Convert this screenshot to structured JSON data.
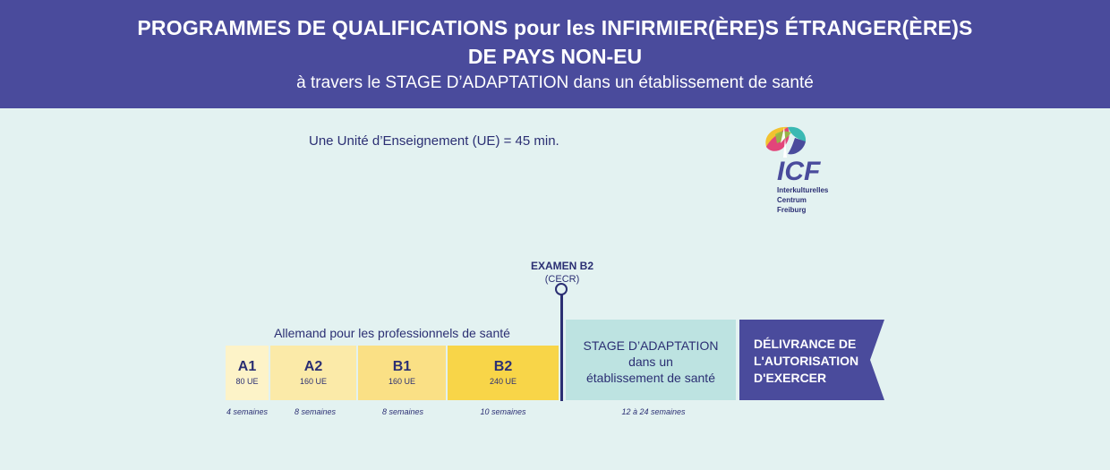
{
  "header": {
    "title_line1": "PROGRAMMES DE QUALIFICATIONS pour les INFIRMIER(ÈRE)S ÉTRANGER(ÈRE)S",
    "title_line2": "DE PAYS NON-EU",
    "subtitle": "à travers le STAGE D’ADAPTATION dans un établissement de santé"
  },
  "unit_note": "Une Unité d’Enseignement (UE) = 45 min.",
  "logo": {
    "acronym": "ICF",
    "name_lines": [
      "Interkulturelles",
      "Centrum",
      "Freiburg"
    ]
  },
  "german_course_label": "Allemand pour les professionnels de santé",
  "levels": [
    {
      "code": "A1",
      "units": "80 UE",
      "weeks": "4 semaines",
      "color": "#fdf3c8"
    },
    {
      "code": "A2",
      "units": "160 UE",
      "weeks": "8 semaines",
      "color": "#fbeaa8"
    },
    {
      "code": "B1",
      "units": "160 UE",
      "weeks": "8 semaines",
      "color": "#fae085"
    },
    {
      "code": "B2",
      "units": "240 UE",
      "weeks": "10 semaines",
      "color": "#f8d548"
    }
  ],
  "exam": {
    "title": "EXAMEN B2",
    "subtitle": "(CECR)"
  },
  "stage": {
    "line1": "STAGE D’ADAPTATION",
    "line2": "dans un",
    "line3": "établissement de santé",
    "weeks": "12 à 24 semaines",
    "color": "#bde3e1"
  },
  "delivery": {
    "line1": "DÉLIVRANCE DE",
    "line2": "L'AUTORISATION",
    "line3": "D'EXERCER",
    "color": "#4a4b9c"
  },
  "colors": {
    "header_bg": "#4a4b9c",
    "page_bg": "#e3f2f1",
    "text": "#2b2f73"
  }
}
